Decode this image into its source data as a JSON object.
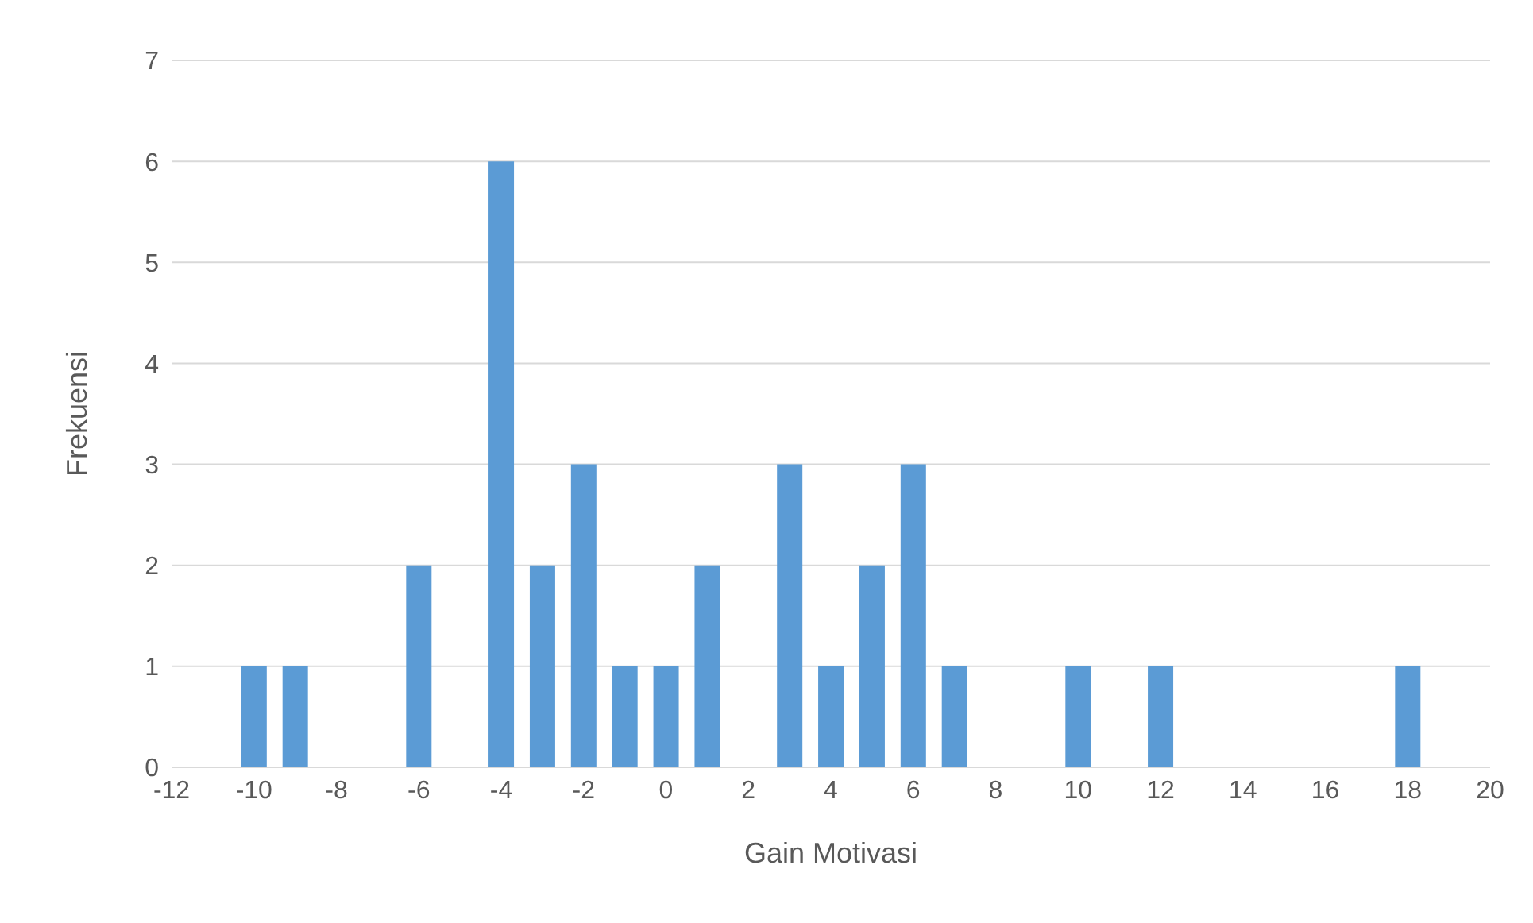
{
  "chart_data": {
    "type": "bar",
    "xlabel": "Gain Motivasi",
    "ylabel": "Frekuensi",
    "x": [
      -10,
      -9,
      -6,
      -4,
      -3,
      -2,
      -1,
      0,
      1,
      3,
      4,
      5,
      6,
      7,
      10,
      12,
      18
    ],
    "values": [
      1,
      1,
      2,
      6,
      2,
      3,
      1,
      1,
      2,
      3,
      1,
      2,
      3,
      1,
      1,
      1,
      1
    ],
    "color": "#5b9bd5",
    "xlim": [
      -12,
      20
    ],
    "xticks": [
      -12,
      -10,
      -8,
      -6,
      -4,
      -2,
      0,
      2,
      4,
      6,
      8,
      10,
      12,
      14,
      16,
      18,
      20
    ],
    "ylim": [
      0,
      7
    ],
    "yticks": [
      0,
      1,
      2,
      3,
      4,
      5,
      6,
      7
    ],
    "grid": "y"
  }
}
